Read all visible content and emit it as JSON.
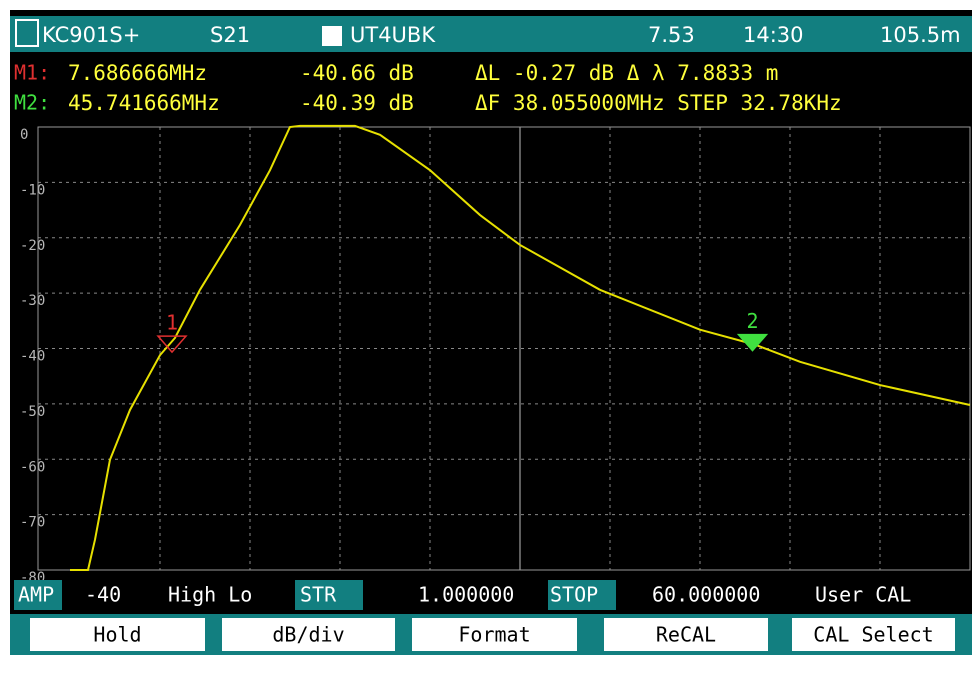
{
  "header": {
    "model": "KC901S+",
    "param": "S21",
    "callsign": "UT4UBK",
    "battery": "7.53",
    "time": "14:30",
    "length": "105.5m"
  },
  "marker_rows": [
    {
      "label": "M1:",
      "freq": "7.686666MHz",
      "level": "-40.66 dB",
      "extra": "ΔL -0.27 dB Δ λ 7.8833 m"
    },
    {
      "label": "M2:",
      "freq": "45.741666MHz",
      "level": "-40.39 dB",
      "extra": "ΔF 38.055000MHz STEP 32.78KHz"
    }
  ],
  "chart_data": {
    "type": "line",
    "x": [
      1.0,
      2.18,
      2.64,
      3.62,
      4.93,
      6.9,
      7.88,
      9.52,
      12.14,
      14.11,
      15.42,
      16.08,
      19.68,
      21.32,
      24.6,
      27.88,
      30.5,
      35.74,
      42.3,
      45.9,
      48.86,
      54.1,
      60.0
    ],
    "series": [
      {
        "name": "S21",
        "color": "#e6e000",
        "values": [
          -80,
          -80,
          -74.5,
          -60.1,
          -51.1,
          -41.2,
          -38.1,
          -29.4,
          -17.7,
          -7.8,
          0,
          0.2,
          0.2,
          -1.4,
          -7.8,
          -15.9,
          -21.3,
          -29.4,
          -36.6,
          -39.3,
          -42.4,
          -46.6,
          -50.2
        ]
      }
    ],
    "xlim": [
      1,
      60
    ],
    "ylim": [
      -80,
      0
    ],
    "yticks": [
      0,
      -10,
      -20,
      -30,
      -40,
      -50,
      -60,
      -70,
      -80
    ],
    "grid": true,
    "markers": [
      {
        "label": "1",
        "x": 7.686666,
        "y": -40.66,
        "color": "#e03030"
      },
      {
        "label": "2",
        "x": 45.741666,
        "y": -40.39,
        "color": "#40e040"
      }
    ]
  },
  "status": {
    "amp": "AMP",
    "ref": "-40",
    "mode": "High Lo",
    "start_label": "STR",
    "start": "1.000000",
    "stop_label": "STOP",
    "stop": "60.000000",
    "cal": "User CAL"
  },
  "buttons": [
    "Hold",
    "dB/div",
    "Format",
    "ReCAL",
    "CAL Select"
  ]
}
